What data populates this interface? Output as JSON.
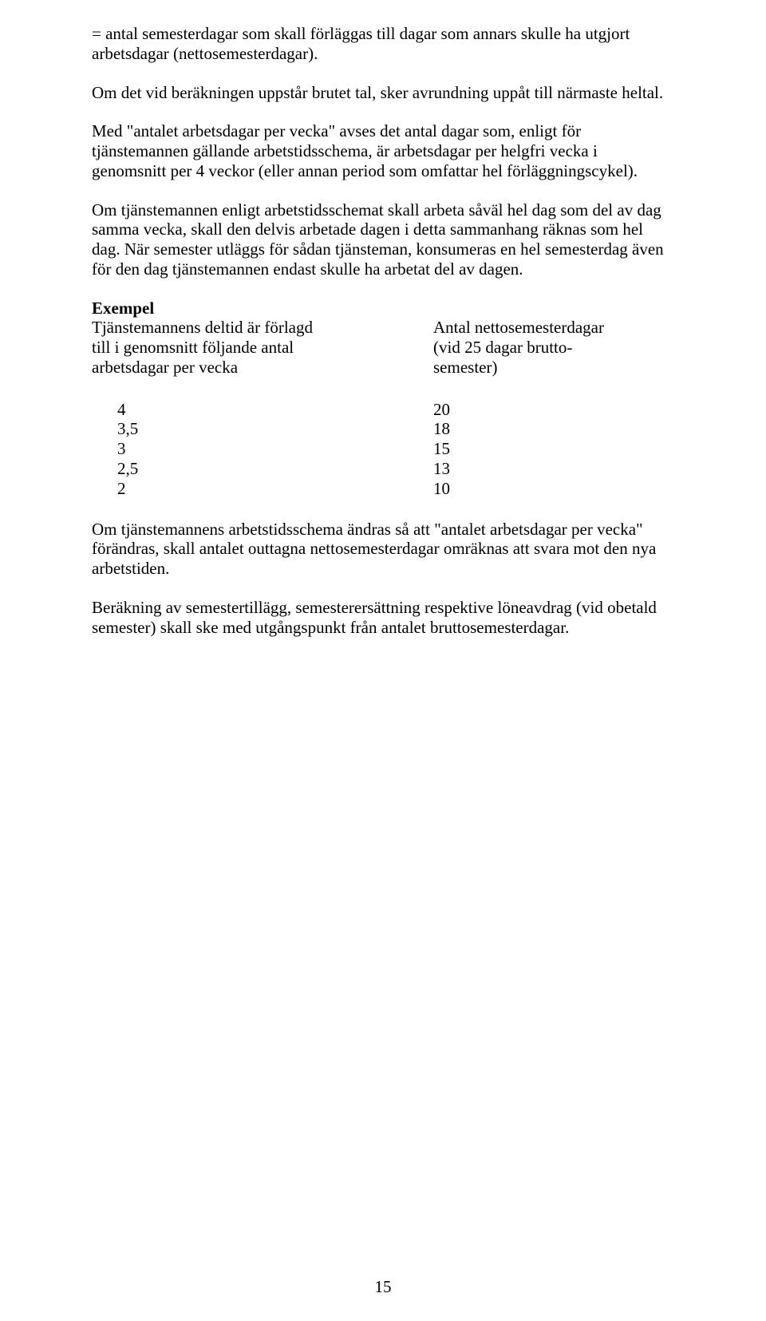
{
  "paragraphs": {
    "p1": "= antal semesterdagar som skall förläggas till dagar som annars skulle ha utgjort arbetsdagar (nettosemesterdagar).",
    "p2": "Om det vid beräkningen uppstår brutet tal, sker avrundning uppåt till närmaste heltal.",
    "p3": "Med \"antalet arbetsdagar per vecka\" avses det antal dagar som, enligt för tjänstemannen gällande arbetstidsschema, är arbetsdagar per helgfri vecka i genomsnitt per 4 veckor (eller annan period som omfattar hel förläggningscykel).",
    "p4": "Om tjänstemannen enligt arbetstidsschemat skall arbeta såväl hel dag som del av dag samma vecka, skall den delvis arbetade dagen i detta sammanhang räknas som hel dag. När semester utläggs för sådan tjänsteman, konsumeras en hel semesterdag även för den dag tjänstemannen endast skulle ha arbetat del av dagen.",
    "p5": "Om tjänstemannens arbetstidsschema ändras så att \"antalet arbetsdagar per vecka\" förändras, skall antalet outtagna nettosemesterdagar omräknas att svara mot den nya arbetstiden.",
    "p6": "Beräkning av semestertillägg, semesterersättning respektive löneavdrag (vid obetald semester) skall ske med utgångspunkt från antalet bruttosemesterdagar."
  },
  "example": {
    "label": "Exempel",
    "left": {
      "l1": "Tjänstemannens deltid är förlagd",
      "l2": "till i genomsnitt följande antal",
      "l3": "arbetsdagar per vecka"
    },
    "right": {
      "r1": "Antal nettosemesterdagar",
      "r2": "(vid 25 dagar brutto-",
      "r3": "semester)"
    }
  },
  "table": {
    "rows": [
      {
        "left": "4",
        "right": "20"
      },
      {
        "left": "3,5",
        "right": "18"
      },
      {
        "left": "3",
        "right": "15"
      },
      {
        "left": "2,5",
        "right": "13"
      },
      {
        "left": "2",
        "right": "10"
      }
    ]
  },
  "pageNumber": "15"
}
